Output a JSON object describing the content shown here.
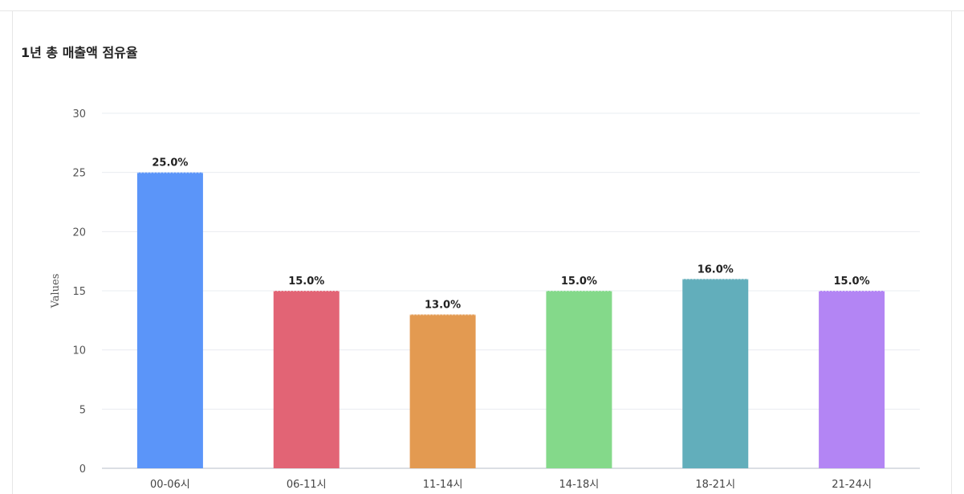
{
  "card": {
    "title": "1년 총 매출액 점유율"
  },
  "chart_data": {
    "type": "bar",
    "title": "1년 총 매출액 점유율",
    "xlabel": "",
    "ylabel": "Values",
    "ylim": [
      0,
      30
    ],
    "yticks": [
      0,
      5,
      10,
      15,
      20,
      25,
      30
    ],
    "grid": true,
    "categories": [
      "00-06시",
      "06-11시",
      "11-14시",
      "14-18시",
      "18-21시",
      "21-24시"
    ],
    "values": [
      25,
      15,
      13,
      15,
      16,
      15
    ],
    "data_labels": [
      "25.0%",
      "15.0%",
      "13.0%",
      "15.0%",
      "16.0%",
      "15.0%"
    ],
    "colors": [
      "#5b95f9",
      "#e26475",
      "#e39a51",
      "#84d98a",
      "#62aebb",
      "#b385f4"
    ],
    "grid_color": "#e9ecf1",
    "axis_color": "#cfd3dc"
  }
}
